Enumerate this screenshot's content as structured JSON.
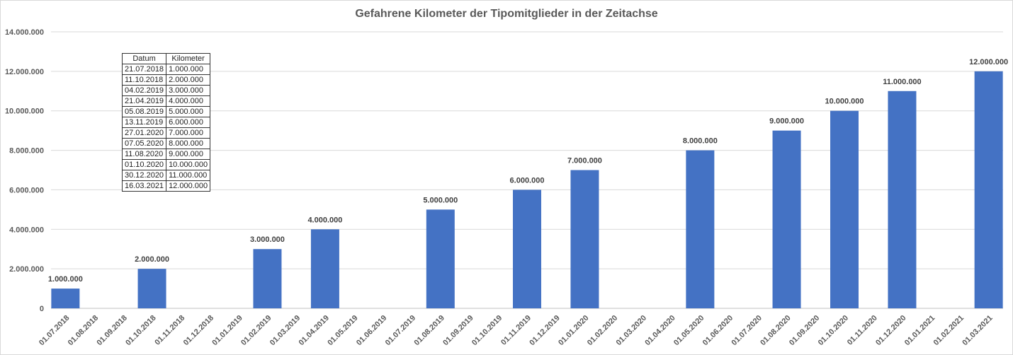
{
  "chart_data": {
    "type": "bar",
    "title": "Gefahrene Kilometer der Tipomitglieder in der Zeitachse",
    "xlabel": "",
    "ylabel": "",
    "ylim": [
      0,
      14000000
    ],
    "yticks": [
      0,
      2000000,
      4000000,
      6000000,
      8000000,
      10000000,
      12000000,
      14000000
    ],
    "ytick_labels": [
      "0",
      "2.000.000",
      "4.000.000",
      "6.000.000",
      "8.000.000",
      "10.000.000",
      "12.000.000",
      "14.000.000"
    ],
    "grid": true,
    "bar_color": "#4472C4",
    "categories": [
      "01.07.2018",
      "01.08.2018",
      "01.09.2018",
      "01.10.2018",
      "01.11.2018",
      "01.12.2018",
      "01.01.2019",
      "01.02.2019",
      "01.03.2019",
      "01.04.2019",
      "01.05.2019",
      "01.06.2019",
      "01.07.2019",
      "01.08.2019",
      "01.09.2019",
      "01.10.2019",
      "01.11.2019",
      "01.12.2019",
      "01.01.2020",
      "01.02.2020",
      "01.03.2020",
      "01.04.2020",
      "01.05.2020",
      "01.06.2020",
      "01.07.2020",
      "01.08.2020",
      "01.09.2020",
      "01.10.2020",
      "01.11.2020",
      "01.12.2020",
      "01.01.2021",
      "01.02.2021",
      "01.03.2021"
    ],
    "values": [
      1000000,
      null,
      null,
      2000000,
      null,
      null,
      null,
      3000000,
      null,
      4000000,
      null,
      null,
      null,
      5000000,
      null,
      null,
      6000000,
      null,
      7000000,
      null,
      null,
      null,
      8000000,
      null,
      null,
      9000000,
      null,
      10000000,
      null,
      11000000,
      null,
      null,
      12000000
    ],
    "data_labels": [
      "1.000.000",
      null,
      null,
      "2.000.000",
      null,
      null,
      null,
      "3.000.000",
      null,
      "4.000.000",
      null,
      null,
      null,
      "5.000.000",
      null,
      null,
      "6.000.000",
      null,
      "7.000.000",
      null,
      null,
      null,
      "8.000.000",
      null,
      null,
      "9.000.000",
      null,
      "10.000.000",
      null,
      "11.000.000",
      null,
      null,
      "12.000.000"
    ]
  },
  "table": {
    "headers": [
      "Datum",
      "Kilometer"
    ],
    "rows": [
      [
        "21.07.2018",
        "1.000.000"
      ],
      [
        "11.10.2018",
        "2.000.000"
      ],
      [
        "04.02.2019",
        "3.000.000"
      ],
      [
        "21.04.2019",
        "4.000.000"
      ],
      [
        "05.08.2019",
        "5.000.000"
      ],
      [
        "13.11.2019",
        "6.000.000"
      ],
      [
        "27.01.2020",
        "7.000.000"
      ],
      [
        "07.05.2020",
        "8.000.000"
      ],
      [
        "11.08.2020",
        "9.000.000"
      ],
      [
        "01.10.2020",
        "10.000.000"
      ],
      [
        "30.12.2020",
        "11.000.000"
      ],
      [
        "16.03.2021",
        "12.000.000"
      ]
    ]
  }
}
